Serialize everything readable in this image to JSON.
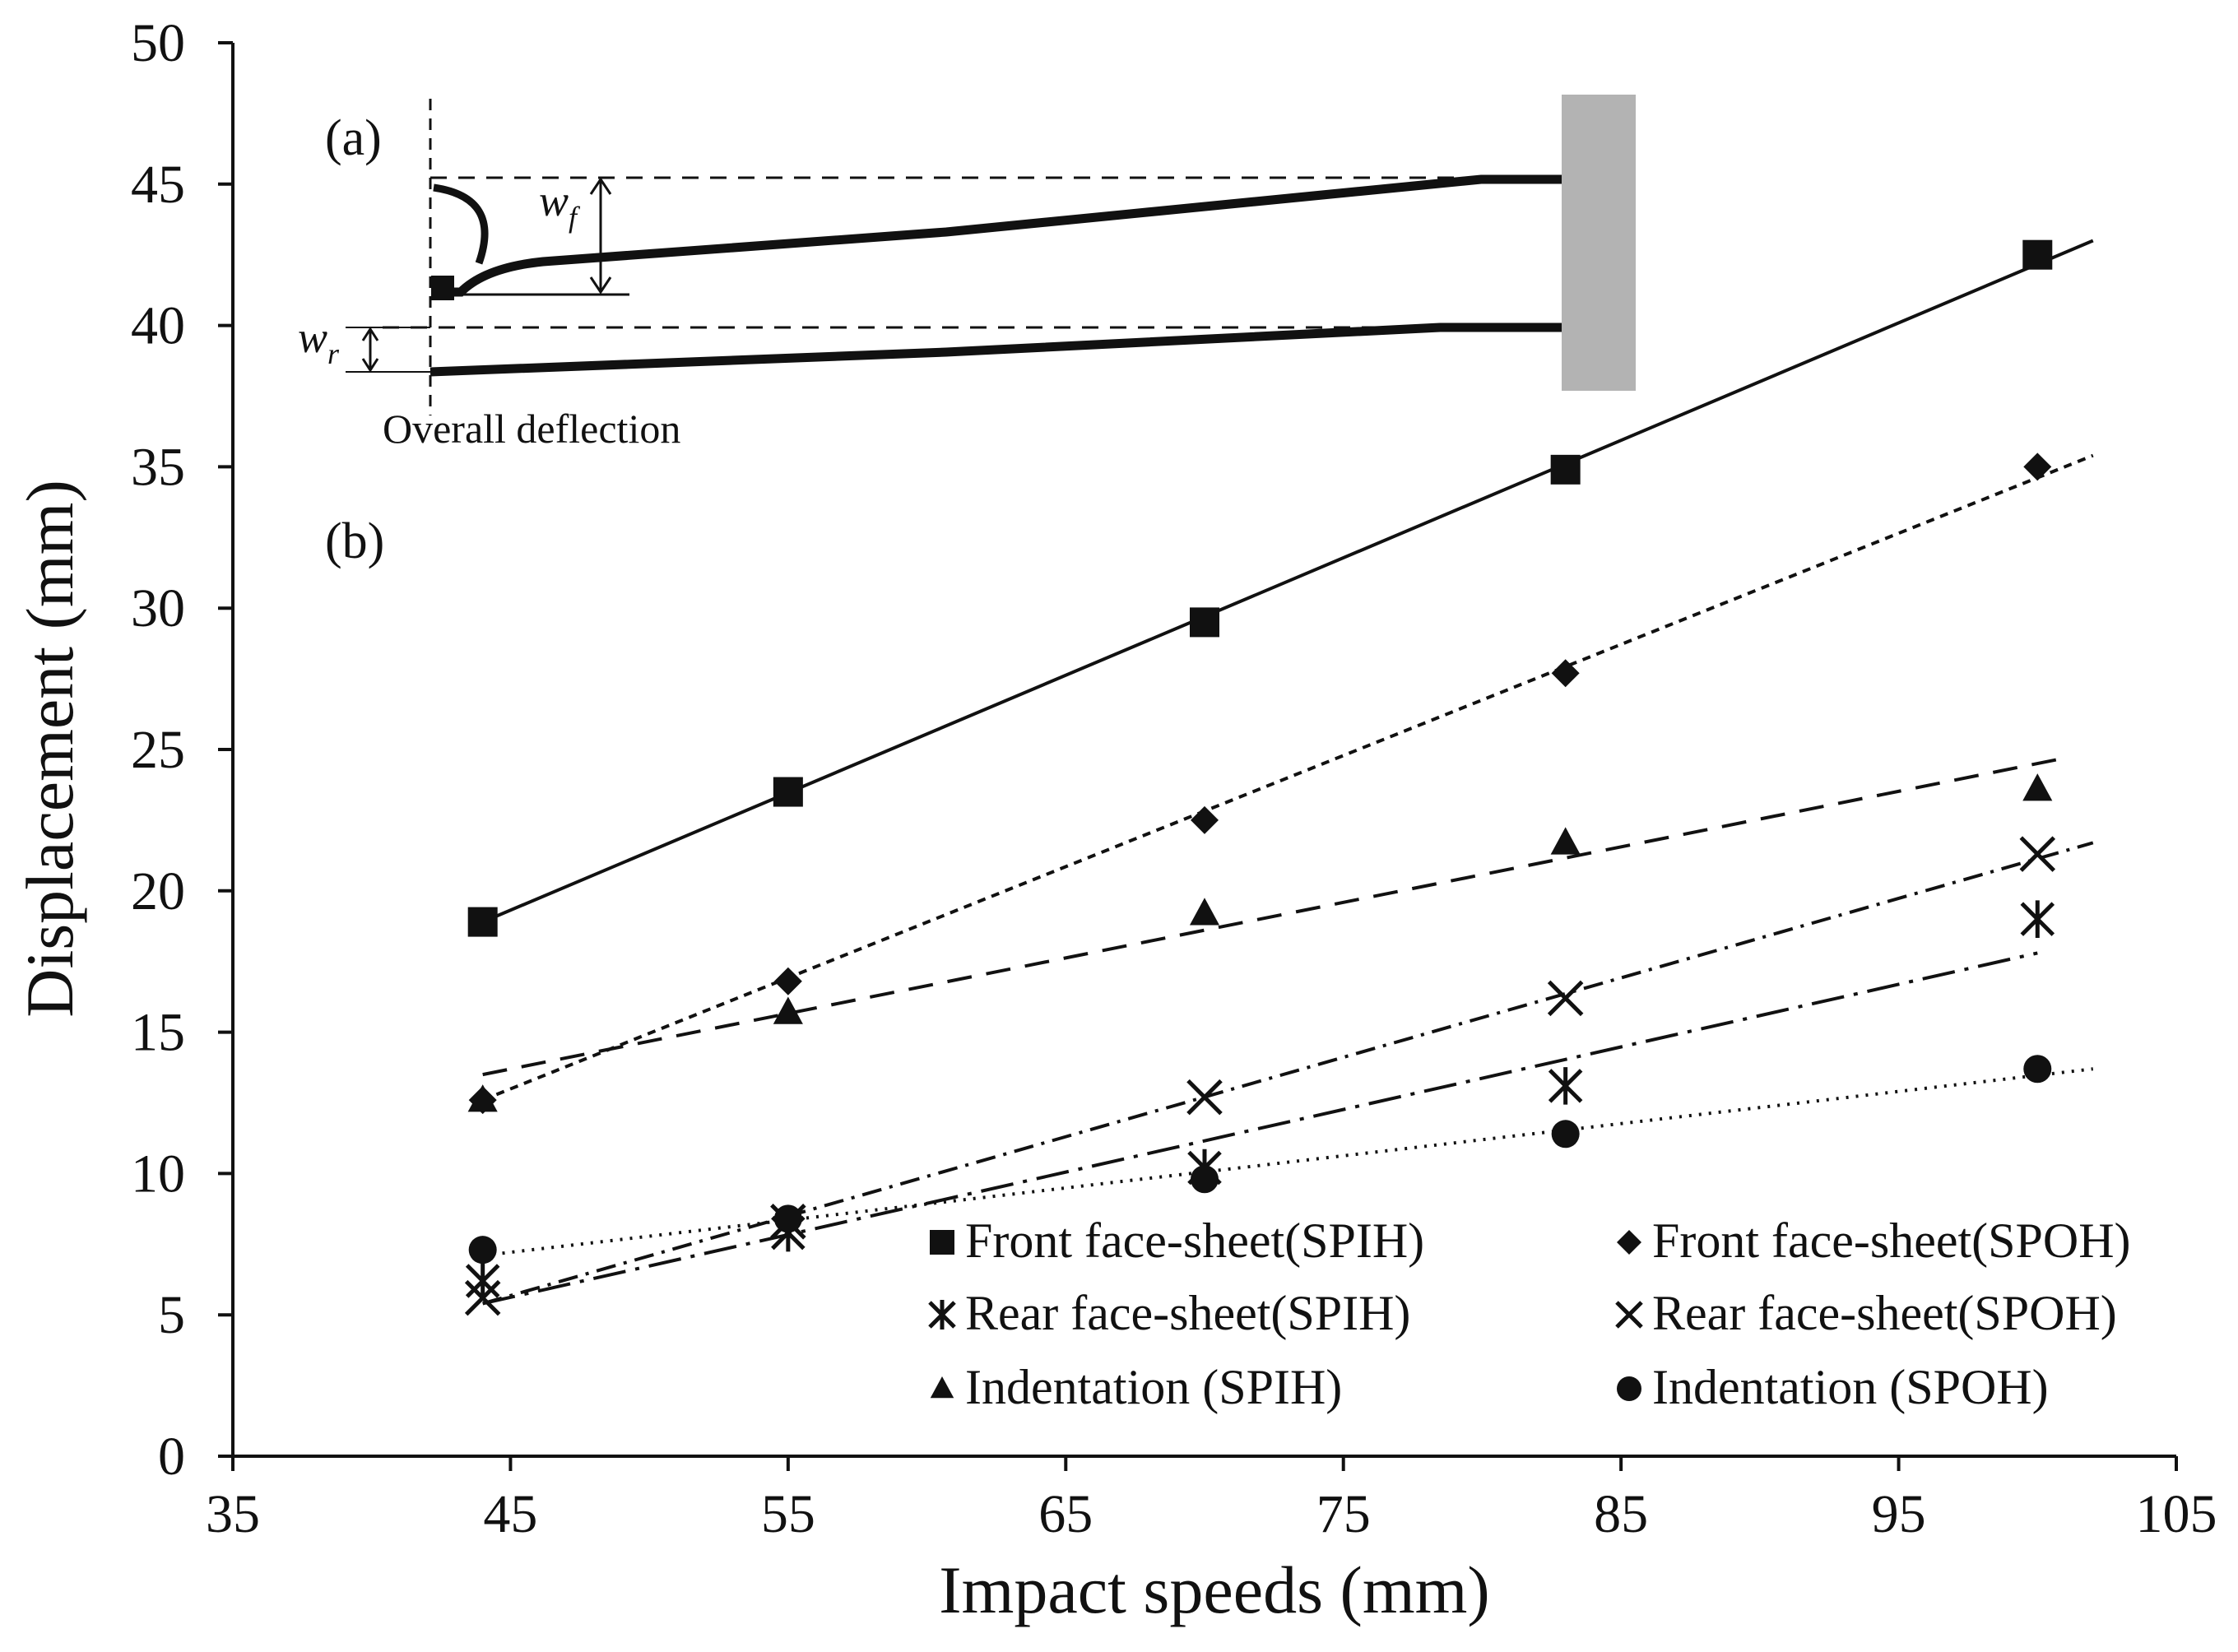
{
  "chart_data": {
    "type": "scatter",
    "title": "",
    "xlabel": "Impact speeds (mm)",
    "ylabel": "Displacement (mm)",
    "xlim": [
      35,
      105
    ],
    "ylim": [
      0,
      50
    ],
    "x_ticks": [
      35,
      45,
      55,
      65,
      75,
      85,
      95,
      105
    ],
    "y_ticks": [
      0,
      5,
      10,
      15,
      20,
      25,
      30,
      35,
      40,
      45,
      50
    ],
    "grid": false,
    "legend_position": "bottom-right",
    "x": [
      44,
      55,
      70,
      83,
      100
    ],
    "series": [
      {
        "name": "Front face-sheet(SPIH)",
        "marker": "square",
        "line": "solid",
        "values": [
          18.9,
          23.5,
          29.5,
          34.9,
          42.5
        ],
        "trend": {
          "x": [
            44,
            102
          ],
          "y": [
            18.9,
            43.0
          ]
        }
      },
      {
        "name": "Front face-sheet(SPOH)",
        "marker": "diamond",
        "line": "short-dash",
        "values": [
          12.6,
          16.8,
          22.5,
          27.7,
          35.0
        ],
        "trend": {
          "x": [
            44,
            102
          ],
          "y": [
            12.6,
            35.4
          ]
        }
      },
      {
        "name": "Rear face-sheet(SPIH)",
        "marker": "asterisk",
        "line": "long-dash-dot",
        "values": [
          6.2,
          7.9,
          10.2,
          13.1,
          19.0
        ],
        "trend": {
          "x": [
            44,
            100
          ],
          "y": [
            5.4,
            17.8
          ]
        }
      },
      {
        "name": "Rear face-sheet(SPOH)",
        "marker": "cross",
        "line": "dash-dot",
        "values": [
          5.6,
          8.3,
          12.7,
          16.2,
          21.3
        ],
        "trend": {
          "x": [
            44,
            102
          ],
          "y": [
            5.4,
            21.7
          ]
        }
      },
      {
        "name": "Indentation (SPIH)",
        "marker": "triangle",
        "line": "dash",
        "values": [
          12.6,
          15.7,
          19.2,
          21.7,
          23.6
        ],
        "trend": {
          "x": [
            44,
            101
          ],
          "y": [
            13.5,
            24.7
          ]
        }
      },
      {
        "name": "Indentation (SPOH)",
        "marker": "circle",
        "line": "dotted",
        "values": [
          7.3,
          8.4,
          9.8,
          11.4,
          13.7
        ],
        "trend": {
          "x": [
            44,
            102
          ],
          "y": [
            7.1,
            13.7
          ]
        }
      }
    ],
    "annotations": {
      "panel_a": "(a)",
      "panel_b": "(b)",
      "inset_front_label": "w",
      "inset_front_subscript": "f",
      "inset_rear_label": "w",
      "inset_rear_subscript": "r",
      "inset_caption": "Overall deflection"
    }
  }
}
